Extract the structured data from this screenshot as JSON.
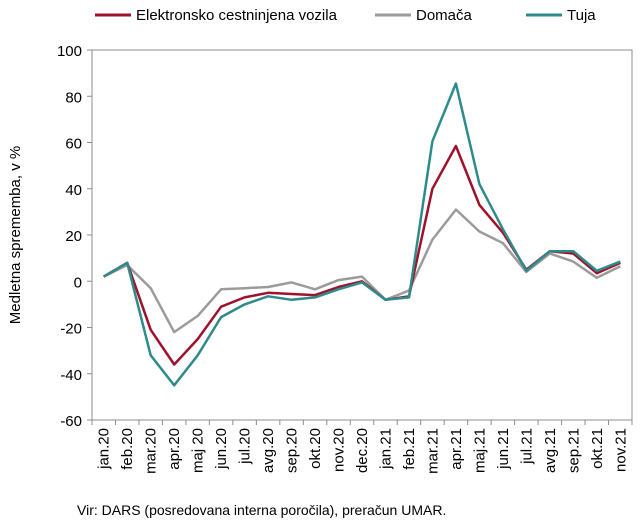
{
  "chart_data": {
    "type": "line",
    "ylabel": "Medletna sprememba, v %",
    "ylim": [
      -60,
      100
    ],
    "yticks": [
      -60,
      -40,
      -20,
      0,
      20,
      40,
      60,
      80,
      100
    ],
    "grid": false,
    "legend_position": "top",
    "categories": [
      "jan.20",
      "feb.20",
      "mar.20",
      "apr.20",
      "maj 20",
      "jun.20",
      "jul.20",
      "avg.20",
      "sep.20",
      "okt.20",
      "nov.20",
      "dec.20",
      "jan.21",
      "feb.21",
      "mar.21",
      "apr.21",
      "maj.21",
      "jun.21",
      "jul.21",
      "avg.21",
      "sep.21",
      "okt.21",
      "nov.21"
    ],
    "series": [
      {
        "name": "Elektronsko cestninjena vozila",
        "color": "#a0112c",
        "values": [
          2,
          8,
          -21,
          -36,
          -25,
          -11,
          -7,
          -5,
          -5.5,
          -6,
          -2.5,
          0,
          -8,
          -6.5,
          40,
          58.5,
          33,
          21,
          5,
          13,
          12,
          3.5,
          8
        ]
      },
      {
        "name": "Domača",
        "color": "#9b9b9b",
        "values": [
          2,
          7,
          -3,
          -22,
          -15,
          -3.5,
          -3,
          -2.5,
          -0.5,
          -3.5,
          0.5,
          2,
          -8,
          -4,
          18,
          31,
          21.5,
          16.5,
          4,
          12,
          8.5,
          1.5,
          6.5
        ]
      },
      {
        "name": "Tuja",
        "color": "#2e8b8b",
        "values": [
          2,
          8,
          -32,
          -45,
          -32,
          -15.5,
          -10,
          -6.5,
          -8,
          -7,
          -3.5,
          -0.5,
          -8,
          -7,
          60.5,
          85.5,
          42,
          22.5,
          4.5,
          13,
          13,
          4.5,
          8.5
        ]
      }
    ]
  },
  "source": "Vir: DARS (posredovana interna poročila), preračun UMAR."
}
